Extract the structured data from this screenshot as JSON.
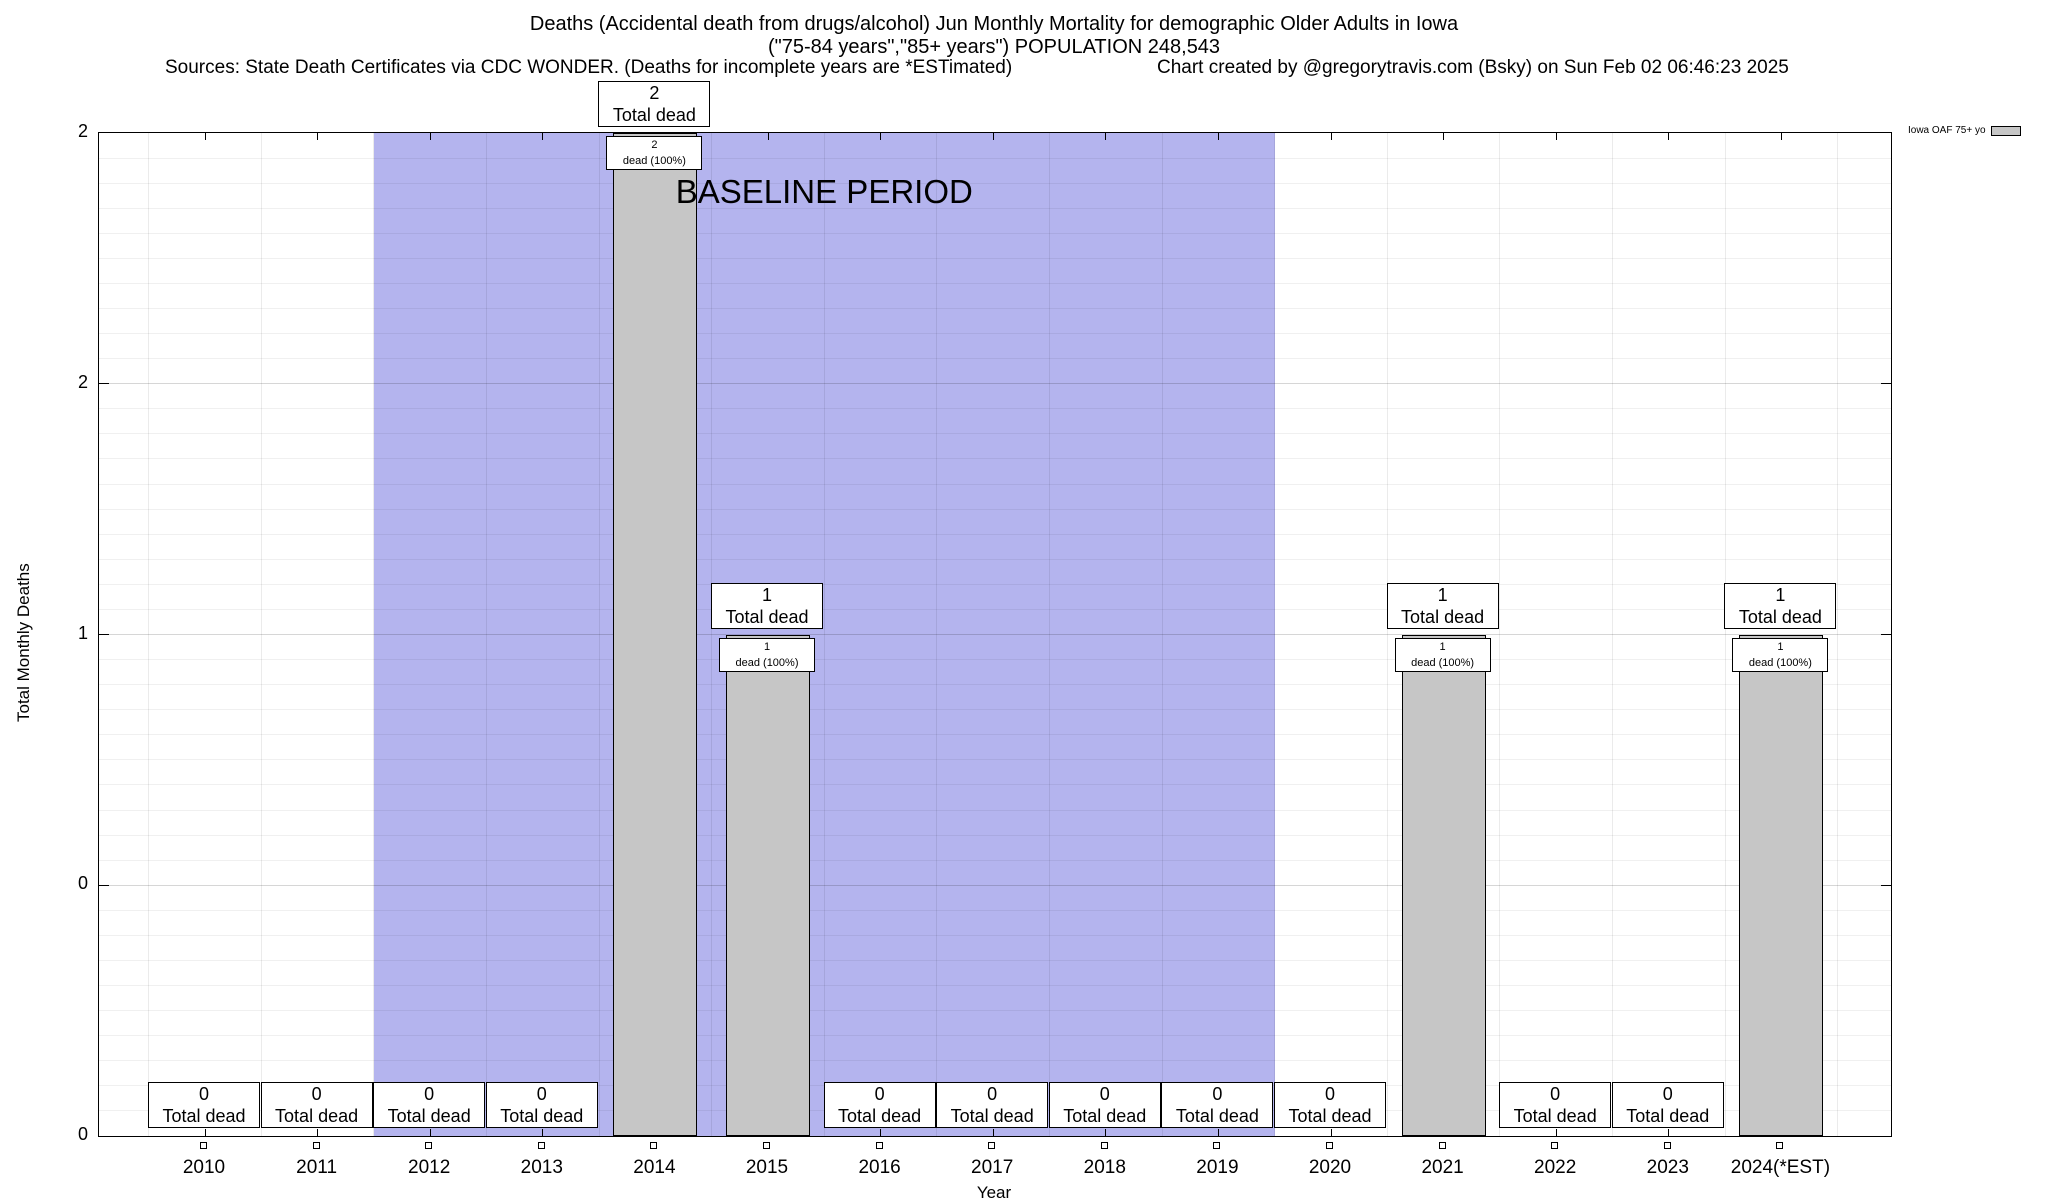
{
  "header": {
    "title_line1": "Deaths (Accidental death from drugs/alcohol) Jun Monthly Mortality for demographic Older Adults in Iowa",
    "title_line2": "(\"75-84 years\",\"85+ years\") POPULATION 248,543",
    "sources": "Sources: State Death Certificates via CDC WONDER. (Deaths for incomplete years are *ESTimated)",
    "credit": "Chart created by @gregorytravis.com (Bsky) on Sun Feb 02 06:46:23 2025"
  },
  "chart_data": {
    "type": "bar",
    "categories": [
      "2010",
      "2011",
      "2012",
      "2013",
      "2014",
      "2015",
      "2016",
      "2017",
      "2018",
      "2019",
      "2020",
      "2021",
      "2022",
      "2023",
      "2024(*EST)"
    ],
    "values": [
      0,
      0,
      0,
      0,
      2,
      1,
      0,
      0,
      0,
      0,
      0,
      1,
      0,
      0,
      1
    ],
    "xlabel": "Year",
    "ylabel": "Total Monthly Deaths",
    "ylim": [
      0,
      2
    ],
    "yticks": {
      "values": [
        0,
        0.5,
        1,
        1.5,
        2
      ],
      "labels": [
        "0",
        "0",
        "1",
        "2",
        "2"
      ]
    },
    "grid": true,
    "bar_color": "#c6c6c6",
    "bar_border_color": "#000000",
    "baseline_period": {
      "label": "BASELINE PERIOD",
      "start_category": "2012",
      "end_category": "2019",
      "color": "#b4b4ee"
    },
    "legend": {
      "label": "Iowa OAF 75+ yo",
      "position": "top-right",
      "swatch_color": "#c6c6c6"
    },
    "labels": {
      "total_suffix": "Total dead",
      "pct_suffix": "dead (100%)"
    }
  }
}
